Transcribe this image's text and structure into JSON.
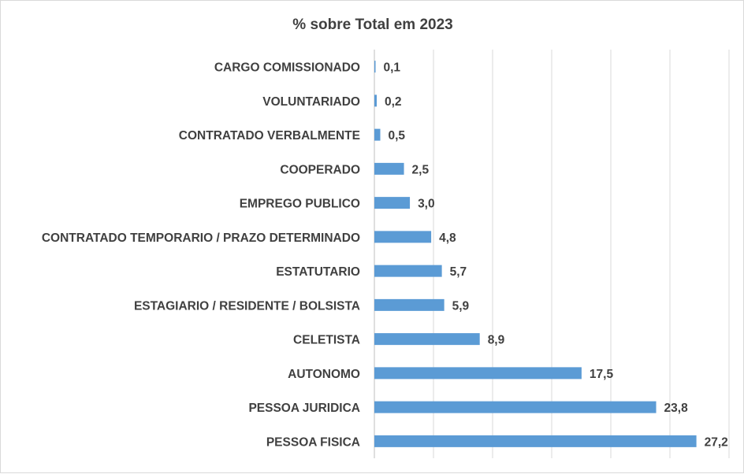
{
  "chart_data": {
    "type": "bar",
    "orientation": "horizontal",
    "title": "% sobre Total em 2023",
    "xlabel": "",
    "ylabel": "",
    "xlim": [
      0,
      27.2
    ],
    "grid": "vertical",
    "legend": "none",
    "bar_color": "#5b9bd5",
    "categories": [
      "CARGO COMISSIONADO",
      "VOLUNTARIADO",
      "CONTRATADO VERBALMENTE",
      "COOPERADO",
      "EMPREGO PUBLICO",
      "CONTRATADO TEMPORARIO / PRAZO DETERMINADO",
      "ESTATUTARIO",
      "ESTAGIARIO / RESIDENTE / BOLSISTA",
      "CELETISTA",
      "AUTONOMO",
      "PESSOA JURIDICA",
      "PESSOA FISICA"
    ],
    "values": [
      0.1,
      0.2,
      0.5,
      2.5,
      3.0,
      4.8,
      5.7,
      5.9,
      8.9,
      17.5,
      23.8,
      27.2
    ],
    "value_labels": [
      "0,1",
      "0,2",
      "0,5",
      "2,5",
      "3,0",
      "4,8",
      "5,7",
      "5,9",
      "8,9",
      "17,5",
      "23,8",
      "27,2"
    ]
  }
}
